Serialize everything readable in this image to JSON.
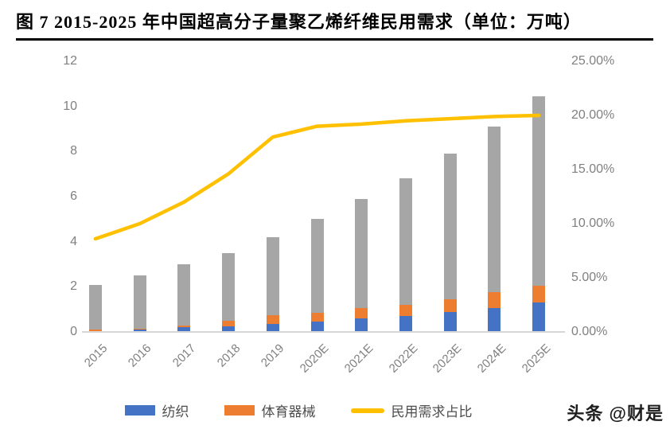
{
  "title": "图 7 2015-2025 年中国超高分子量聚乙烯纤维民用需求（单位：万吨）",
  "watermark": "头条 @财是",
  "colors": {
    "bar_blue": "#4472C4",
    "bar_orange": "#ED7D31",
    "bar_gray": "#A6A6A6",
    "line_yellow": "#FFC000",
    "axis_text": "#808080",
    "axis_line": "#D6D6D6",
    "title_text": "#000000"
  },
  "chart_data": {
    "type": "bar",
    "subtype": "stacked-bars-with-line-overlay",
    "title": "图 7 2015-2025 年中国超高分子量聚乙烯纤维民用需求（单位：万吨）",
    "categories": [
      "2015",
      "2016",
      "2017",
      "2018",
      "2019",
      "2020E",
      "2021E",
      "2022E",
      "2023E",
      "2024E",
      "2025E"
    ],
    "series": [
      {
        "name": "纺织",
        "kind": "bar",
        "axis": "left",
        "color": "#4472C4",
        "values": [
          0.05,
          0.1,
          0.2,
          0.25,
          0.35,
          0.45,
          0.6,
          0.7,
          0.9,
          1.05,
          1.3
        ]
      },
      {
        "name": "体育器械",
        "kind": "bar",
        "axis": "left",
        "color": "#ED7D31",
        "values": [
          0.05,
          0.05,
          0.1,
          0.25,
          0.4,
          0.4,
          0.45,
          0.5,
          0.55,
          0.7,
          0.75
        ]
      },
      {
        "name": "",
        "kind": "bar",
        "axis": "left",
        "color": "#A6A6A6",
        "values": [
          2.0,
          2.35,
          2.7,
          3.0,
          3.45,
          4.15,
          4.85,
          5.6,
          6.45,
          7.35,
          8.4
        ]
      },
      {
        "name": "民用需求占比",
        "kind": "line",
        "axis": "right",
        "color": "#FFC000",
        "values": [
          8.6,
          10.0,
          12.0,
          14.6,
          18.0,
          19.0,
          19.2,
          19.5,
          19.7,
          19.9,
          20.0
        ]
      }
    ],
    "bar_totals": [
      2.1,
      2.5,
      3.0,
      3.5,
      4.2,
      5.0,
      5.9,
      6.8,
      7.9,
      9.1,
      10.45
    ],
    "left_axis": {
      "min": 0,
      "max": 12,
      "ticks": [
        "0",
        "2",
        "4",
        "6",
        "8",
        "10",
        "12"
      ]
    },
    "right_axis": {
      "min": 0,
      "max": 25,
      "ticks": [
        "0.00%",
        "5.00%",
        "10.00%",
        "15.00%",
        "20.00%",
        "25.00%"
      ]
    },
    "legend": [
      "纺织",
      "体育器械",
      "民用需求占比"
    ],
    "legend_position": "bottom",
    "grid": false,
    "xlabel": "",
    "ylabel_left": "万吨",
    "ylabel_right": "%"
  }
}
